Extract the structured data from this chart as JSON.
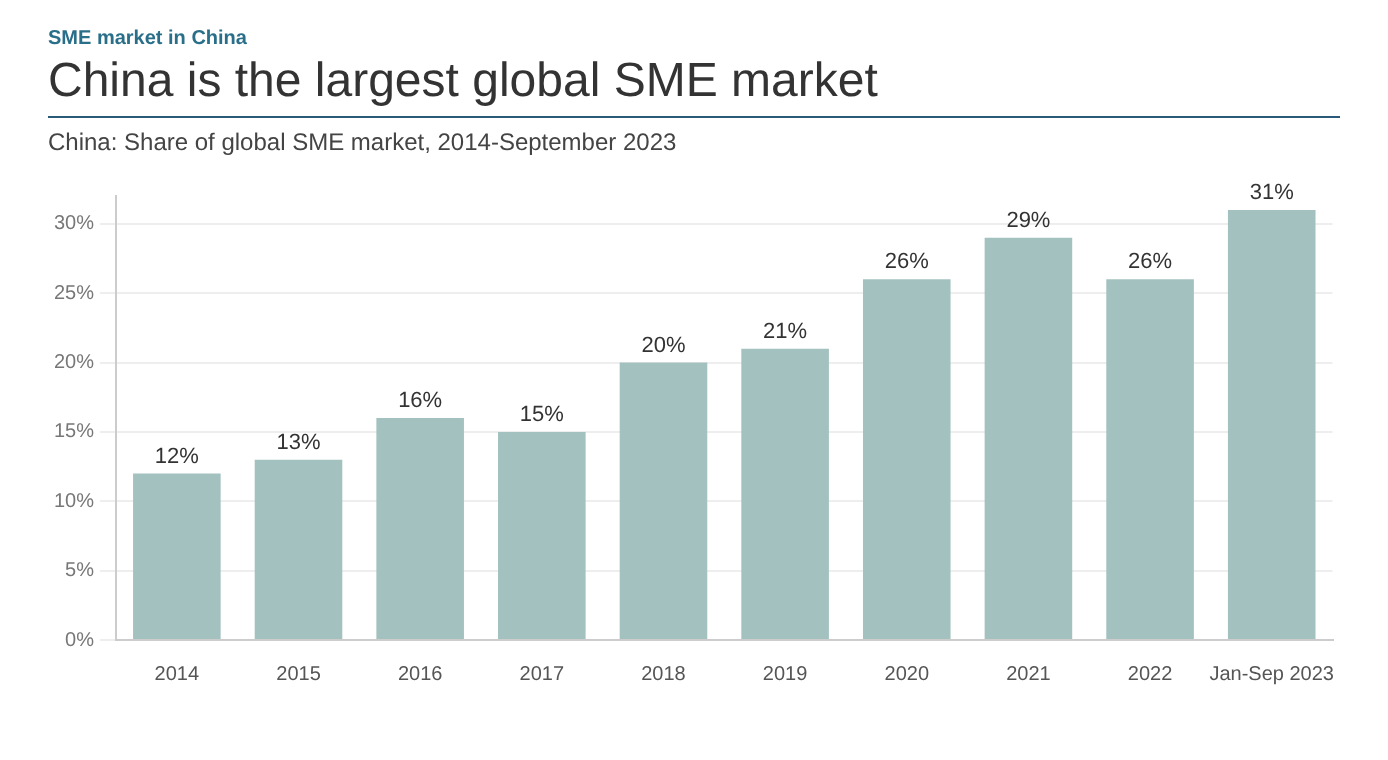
{
  "chart_data": {
    "type": "bar",
    "title": "China is the largest global SME market",
    "subtitle": "China: Share of global SME market, 2014-September 2023",
    "annotations": [
      "SME market in China"
    ],
    "categories": [
      "2014",
      "2015",
      "2016",
      "2017",
      "2018",
      "2019",
      "2020",
      "2021",
      "2022",
      "Jan-Sep 2023"
    ],
    "values": [
      12,
      13,
      16,
      15,
      20,
      21,
      26,
      29,
      26,
      31
    ],
    "value_labels": [
      "12%",
      "13%",
      "16%",
      "15%",
      "20%",
      "21%",
      "26%",
      "29%",
      "26%",
      "31%"
    ],
    "color": "#a3c2bf",
    "ylim": [
      0,
      32
    ],
    "yticks": [
      {
        "value": 0,
        "label": "0%"
      },
      {
        "value": 5,
        "label": "5%"
      },
      {
        "value": 10,
        "label": "10%"
      },
      {
        "value": 15,
        "label": "15%"
      },
      {
        "value": 20,
        "label": "20%"
      },
      {
        "value": 25,
        "label": "25%"
      },
      {
        "value": 30,
        "label": "30%"
      }
    ],
    "grid": "y"
  }
}
